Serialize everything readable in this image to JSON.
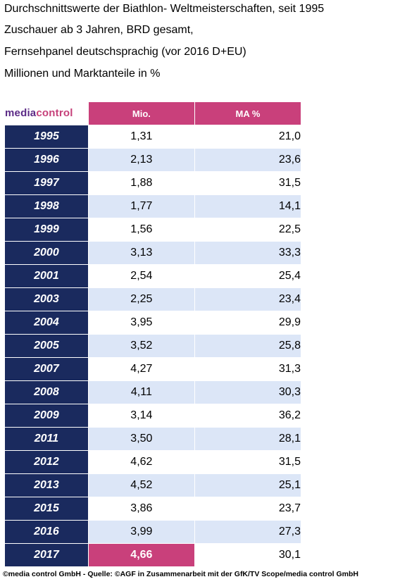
{
  "header": {
    "lines": [
      "Durchschnittswerte der Biathlon- Weltmeisterschaften, seit 1995",
      "Zuschauer ab 3 Jahren, BRD gesamt,",
      "Fernsehpanel deutschsprachig (vor 2016 D+EU)",
      "Millionen und Marktanteile in %"
    ]
  },
  "logo": {
    "part1": "media",
    "part2": "control"
  },
  "table": {
    "columns": [
      "Mio.",
      "MA %"
    ],
    "rows": [
      {
        "year": "1995",
        "mio": "1,31",
        "ma": "21,0"
      },
      {
        "year": "1996",
        "mio": "2,13",
        "ma": "23,6"
      },
      {
        "year": "1997",
        "mio": "1,88",
        "ma": "31,5"
      },
      {
        "year": "1998",
        "mio": "1,77",
        "ma": "14,1"
      },
      {
        "year": "1999",
        "mio": "1,56",
        "ma": "22,5"
      },
      {
        "year": "2000",
        "mio": "3,13",
        "ma": "33,3"
      },
      {
        "year": "2001",
        "mio": "2,54",
        "ma": "25,4"
      },
      {
        "year": "2003",
        "mio": "2,25",
        "ma": "23,4"
      },
      {
        "year": "2004",
        "mio": "3,95",
        "ma": "29,9"
      },
      {
        "year": "2005",
        "mio": "3,52",
        "ma": "25,8"
      },
      {
        "year": "2007",
        "mio": "4,27",
        "ma": "31,3"
      },
      {
        "year": "2008",
        "mio": "4,11",
        "ma": "30,3"
      },
      {
        "year": "2009",
        "mio": "3,14",
        "ma": "36,2"
      },
      {
        "year": "2011",
        "mio": "3,50",
        "ma": "28,1"
      },
      {
        "year": "2012",
        "mio": "4,62",
        "ma": "31,5"
      },
      {
        "year": "2013",
        "mio": "4,52",
        "ma": "25,1"
      },
      {
        "year": "2015",
        "mio": "3,86",
        "ma": "23,7"
      },
      {
        "year": "2016",
        "mio": "3,99",
        "ma": "27,3"
      },
      {
        "year": "2017",
        "mio": "4,66",
        "ma": "30,1",
        "highlight": true
      }
    ]
  },
  "footer": "©media control GmbH - Quelle: ©AGF in Zusammenarbeit mit der GfK/TV Scope/media control GmbH",
  "colors": {
    "year_bg": "#1a2a5e",
    "header_pink": "#c9407b",
    "stripe_blue": "#dce6f7",
    "logo_purple": "#5b2a86",
    "logo_pink": "#c6417a"
  }
}
